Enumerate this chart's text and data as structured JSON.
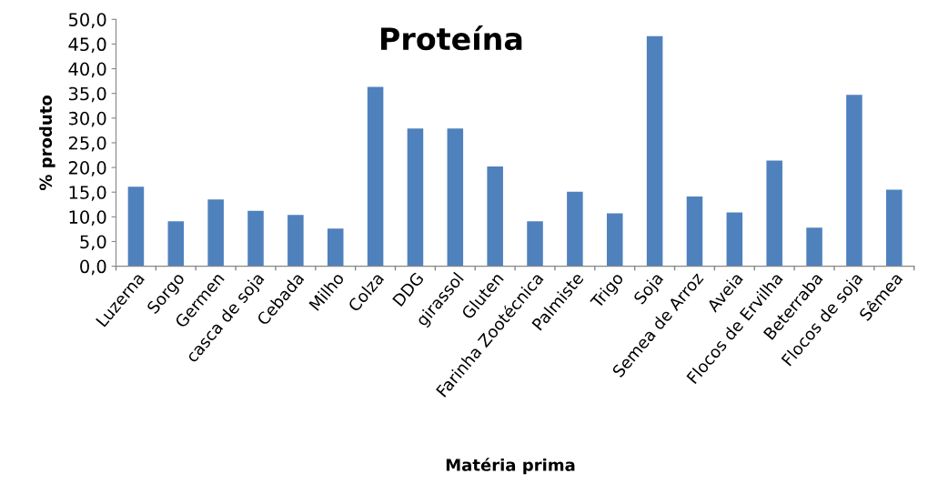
{
  "chart_data": {
    "type": "bar",
    "title": "Proteína",
    "xlabel": "Matéria prima",
    "ylabel": "% produto",
    "categories": [
      "Luzerna",
      "Sorgo",
      "Germen",
      "casca de soja",
      "Cebada",
      "Milho",
      "Colza",
      "DDG",
      "girassol",
      "Gluten",
      "Farinha Zootécnica",
      "Palmiste",
      "Trigo",
      "Soja",
      "Semea de Arroz",
      "Aveia",
      "Flocos de Ervilha",
      "Beterraba",
      "Flocos de soja",
      "Sêmea"
    ],
    "values": [
      16.1,
      9.1,
      13.5,
      11.2,
      10.4,
      7.6,
      36.3,
      27.9,
      27.9,
      20.2,
      9.1,
      15.1,
      10.7,
      46.6,
      14.1,
      10.9,
      21.4,
      7.8,
      34.7,
      15.5
    ],
    "color": "#4f81bd",
    "ylim": [
      0,
      50
    ],
    "yticks": [
      {
        "value": 0,
        "label": "0,0"
      },
      {
        "value": 5,
        "label": "5,0"
      },
      {
        "value": 10,
        "label": "10,0"
      },
      {
        "value": 15,
        "label": "15,0"
      },
      {
        "value": 20,
        "label": "20,0"
      },
      {
        "value": 25,
        "label": "25,0"
      },
      {
        "value": 30,
        "label": "30,0"
      },
      {
        "value": 35,
        "label": "35,0"
      },
      {
        "value": 40,
        "label": "40,0"
      },
      {
        "value": 45,
        "label": "45,0"
      },
      {
        "value": 50,
        "label": "50,0"
      }
    ],
    "grid": false,
    "legend": false
  }
}
